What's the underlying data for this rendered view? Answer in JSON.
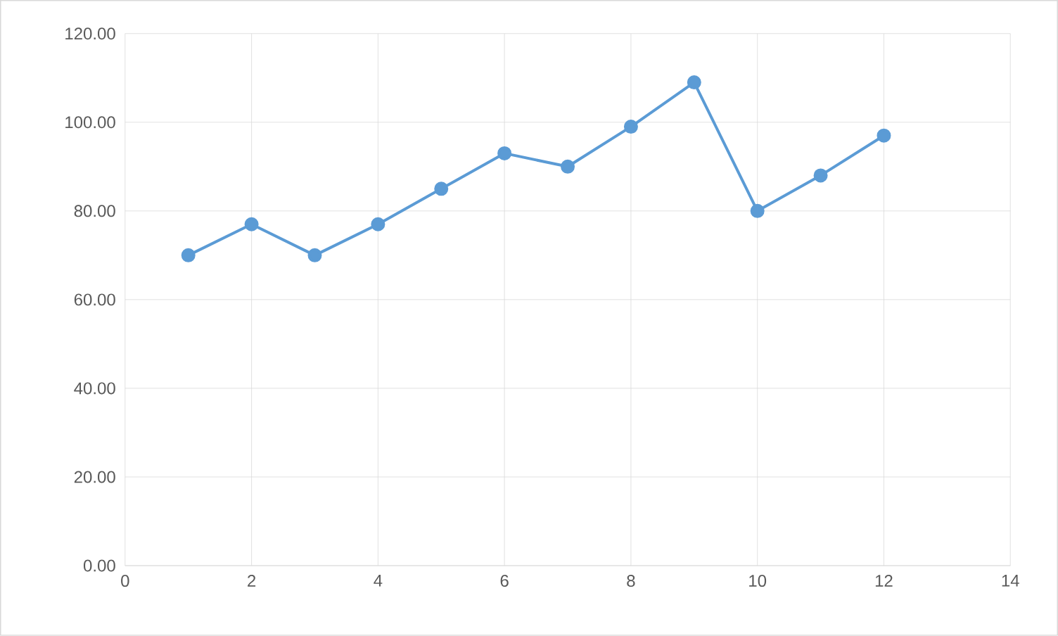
{
  "chart_data": {
    "type": "line",
    "x": [
      1,
      2,
      3,
      4,
      5,
      6,
      7,
      8,
      9,
      10,
      11,
      12
    ],
    "series": [
      {
        "color": "#5b9bd5",
        "values": [
          70,
          77,
          70,
          77,
          85,
          93,
          90,
          99,
          109,
          80,
          88,
          97
        ]
      }
    ],
    "xlim": [
      0,
      14
    ],
    "xticks": [
      0,
      2,
      4,
      6,
      8,
      10,
      12,
      14
    ],
    "ylim": [
      0,
      120
    ],
    "yticks": [
      {
        "value": 0,
        "label": "0.00"
      },
      {
        "value": 20,
        "label": "20.00"
      },
      {
        "value": 40,
        "label": "40.00"
      },
      {
        "value": 60,
        "label": "60.00"
      },
      {
        "value": 80,
        "label": "80.00"
      },
      {
        "value": 100,
        "label": "100.00"
      },
      {
        "value": 120,
        "label": "120.00"
      }
    ],
    "grid": true,
    "marker": "circle",
    "line_style": "solid"
  }
}
